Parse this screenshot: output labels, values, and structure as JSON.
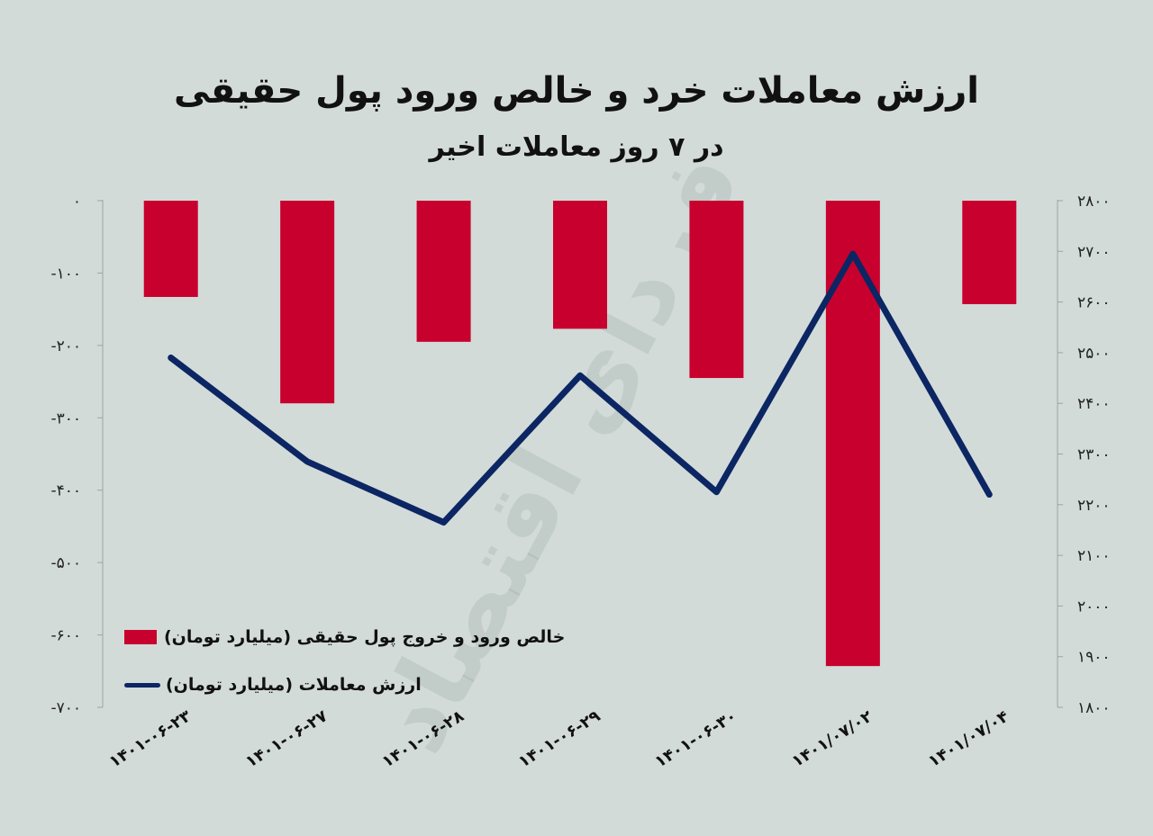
{
  "title": "ارزش معاملات خرد و خالص ورود پول حقیقی",
  "subtitle": "در ۷ روز معاملات اخیر",
  "watermark": "فردای اقتصاد",
  "colors": {
    "background": "#d3dbd9",
    "bar": "#c8002e",
    "line": "#0c2663"
  },
  "legend": [
    {
      "label": "خالص ورود و خروج پول حقیقی (میلیارد تومان)",
      "marker": "bar"
    },
    {
      "label": "ارزش معاملات (میلیارد تومان)",
      "marker": "line"
    }
  ],
  "chart_data": {
    "type": "bar+line",
    "categories": [
      "۱۴۰۱-۰۶-۲۳",
      "۱۴۰۱-۰۶-۲۷",
      "۱۴۰۱-۰۶-۲۸",
      "۱۴۰۱-۰۶-۲۹",
      "۱۴۰۱-۰۶-۳۰",
      "۱۴۰۱/۰۷/۰۲",
      "۱۴۰۱/۰۷/۰۴"
    ],
    "series": [
      {
        "name": "خالص ورود و خروج پول حقیقی (میلیارد تومان)",
        "type": "bar",
        "axis": "left",
        "values": [
          -133,
          -280,
          -195,
          -177,
          -245,
          -643,
          -143
        ]
      },
      {
        "name": "ارزش معاملات (میلیارد تومان)",
        "type": "line",
        "axis": "right",
        "values": [
          2490,
          2285,
          2165,
          2455,
          2225,
          2695,
          2220
        ]
      }
    ],
    "y_left": {
      "range": [
        -700,
        0
      ],
      "ticks": [
        0,
        -100,
        -200,
        -300,
        -400,
        -500,
        -600,
        -700
      ],
      "tick_labels": [
        "۰",
        "-۱۰۰",
        "-۲۰۰",
        "-۳۰۰",
        "-۴۰۰",
        "-۵۰۰",
        "-۶۰۰",
        "-۷۰۰"
      ]
    },
    "y_right": {
      "range": [
        1800,
        2800
      ],
      "ticks": [
        2800,
        2700,
        2600,
        2500,
        2400,
        2300,
        2200,
        2100,
        2000,
        1900,
        1800
      ],
      "tick_labels": [
        "۲۸۰۰",
        "۲۷۰۰",
        "۲۶۰۰",
        "۲۵۰۰",
        "۲۴۰۰",
        "۲۳۰۰",
        "۲۲۰۰",
        "۲۱۰۰",
        "۲۰۰۰",
        "۱۹۰۰",
        "۱۸۰۰"
      ]
    },
    "grid": false,
    "legend_position": "bottom-left"
  }
}
